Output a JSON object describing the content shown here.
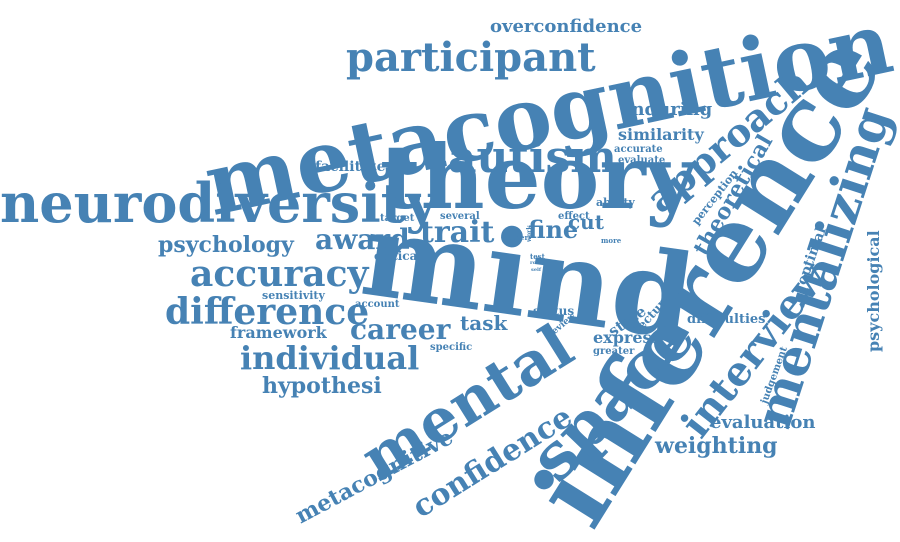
{
  "palette": {
    "word_color": "#4682b4",
    "background": "#ffffff"
  },
  "words": {
    "metacognition": "metacognition",
    "theory": "theory",
    "mind": "mind",
    "inference": "inference",
    "neurodiversity": "neurodiversity",
    "participant": "participant",
    "autism": "autism",
    "approach": "approach",
    "mentalizing": "mentalizing",
    "mental": "mental",
    "space": "space",
    "interview": "interview",
    "accuracy": "accuracy",
    "difference": "difference",
    "individual": "individual",
    "psychology": "psychology",
    "award": "award",
    "trait": "trait",
    "career": "career",
    "hypothesi": "hypothesi",
    "confidence": "confidence",
    "metacognitive": "metacognitive",
    "overconfidence": "overconfidence",
    "enduring": "enduring",
    "similarity": "similarity",
    "accurate": "accurate",
    "evaluate": "evaluate",
    "theoretical": "theoretical",
    "facilitate": "facilitate",
    "framework": "framework",
    "task": "task",
    "fine": "fine",
    "cut": "cut",
    "weighting": "weighting",
    "evaluation": "evaluation",
    "psychological": "psychological",
    "optimal": "optimal",
    "perception": "perception",
    "difficulties": "difficulties",
    "judgement": "judgement",
    "express": "express",
    "greater": "greater",
    "state": "state",
    "lecture": "lecture",
    "status": "status",
    "review": "review",
    "specific": "specific",
    "account": "account",
    "sensitivity": "sensitivity",
    "critical": "critical",
    "target": "target",
    "several": "several",
    "effect": "effect",
    "ability": "ability",
    "other": "other",
    "test": "test",
    "role": "role",
    "self": "self",
    "more": "more",
    "work": "work"
  }
}
